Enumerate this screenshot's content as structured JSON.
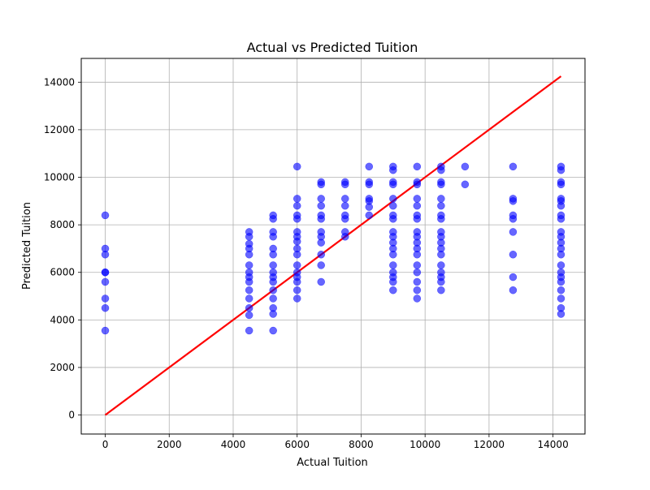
{
  "chart_data": {
    "type": "scatter",
    "title": "Actual vs Predicted Tuition",
    "xlabel": "Actual Tuition",
    "ylabel": "Predicted Tuition",
    "xlim": [
      -750,
      15000
    ],
    "ylim": [
      -800,
      15000
    ],
    "xticks": [
      0,
      2000,
      4000,
      6000,
      8000,
      10000,
      12000,
      14000
    ],
    "yticks": [
      0,
      2000,
      4000,
      6000,
      8000,
      10000,
      12000,
      14000
    ],
    "grid": true,
    "point_color": "#0000ff",
    "point_opacity": 0.6,
    "line_color": "#ff0000",
    "reference_line": {
      "x": [
        0,
        14250
      ],
      "y": [
        0,
        14250
      ]
    },
    "series": [
      {
        "points": [
          [
            0,
            8400
          ],
          [
            0,
            7000
          ],
          [
            0,
            6750
          ],
          [
            0,
            6000
          ],
          [
            0,
            6000
          ],
          [
            0,
            5600
          ],
          [
            0,
            4900
          ],
          [
            0,
            4500
          ],
          [
            0,
            3550
          ],
          [
            4500,
            7700
          ],
          [
            4500,
            7500
          ],
          [
            4500,
            7200
          ],
          [
            4500,
            7000
          ],
          [
            4500,
            6750
          ],
          [
            4500,
            6300
          ],
          [
            4500,
            6000
          ],
          [
            4500,
            5800
          ],
          [
            4500,
            5600
          ],
          [
            4500,
            5250
          ],
          [
            4500,
            4900
          ],
          [
            4500,
            4500
          ],
          [
            4500,
            4200
          ],
          [
            4500,
            3550
          ],
          [
            5250,
            8400
          ],
          [
            5250,
            8250
          ],
          [
            5250,
            7700
          ],
          [
            5250,
            7500
          ],
          [
            5250,
            7000
          ],
          [
            5250,
            6750
          ],
          [
            5250,
            6300
          ],
          [
            5250,
            6000
          ],
          [
            5250,
            5800
          ],
          [
            5250,
            5600
          ],
          [
            5250,
            5250
          ],
          [
            5250,
            4900
          ],
          [
            5250,
            4500
          ],
          [
            5250,
            4250
          ],
          [
            5250,
            3550
          ],
          [
            6000,
            10450
          ],
          [
            6000,
            9100
          ],
          [
            6000,
            8800
          ],
          [
            6000,
            8400
          ],
          [
            6000,
            8250
          ],
          [
            6000,
            7700
          ],
          [
            6000,
            7500
          ],
          [
            6000,
            7300
          ],
          [
            6000,
            7000
          ],
          [
            6000,
            6750
          ],
          [
            6000,
            6300
          ],
          [
            6000,
            6000
          ],
          [
            6000,
            5800
          ],
          [
            6000,
            5600
          ],
          [
            6000,
            5250
          ],
          [
            6000,
            4900
          ],
          [
            6750,
            9800
          ],
          [
            6750,
            9700
          ],
          [
            6750,
            9100
          ],
          [
            6750,
            8800
          ],
          [
            6750,
            8400
          ],
          [
            6750,
            8250
          ],
          [
            6750,
            7700
          ],
          [
            6750,
            7500
          ],
          [
            6750,
            7250
          ],
          [
            6750,
            6750
          ],
          [
            6750,
            6300
          ],
          [
            6750,
            5600
          ],
          [
            7500,
            9800
          ],
          [
            7500,
            9700
          ],
          [
            7500,
            9100
          ],
          [
            7500,
            8800
          ],
          [
            7500,
            8400
          ],
          [
            7500,
            8250
          ],
          [
            7500,
            7700
          ],
          [
            7500,
            7500
          ],
          [
            8250,
            10450
          ],
          [
            8250,
            9800
          ],
          [
            8250,
            9700
          ],
          [
            8250,
            9100
          ],
          [
            8250,
            9000
          ],
          [
            8250,
            8750
          ],
          [
            8250,
            8400
          ],
          [
            9000,
            10450
          ],
          [
            9000,
            10300
          ],
          [
            9000,
            9800
          ],
          [
            9000,
            9700
          ],
          [
            9000,
            9100
          ],
          [
            9000,
            8800
          ],
          [
            9000,
            8400
          ],
          [
            9000,
            8250
          ],
          [
            9000,
            7700
          ],
          [
            9000,
            7500
          ],
          [
            9000,
            7250
          ],
          [
            9000,
            7000
          ],
          [
            9000,
            6750
          ],
          [
            9000,
            6300
          ],
          [
            9000,
            6000
          ],
          [
            9000,
            5800
          ],
          [
            9000,
            5600
          ],
          [
            9000,
            5250
          ],
          [
            9750,
            10450
          ],
          [
            9750,
            9800
          ],
          [
            9750,
            9700
          ],
          [
            9750,
            9100
          ],
          [
            9750,
            8800
          ],
          [
            9750,
            8400
          ],
          [
            9750,
            8250
          ],
          [
            9750,
            7700
          ],
          [
            9750,
            7500
          ],
          [
            9750,
            7250
          ],
          [
            9750,
            7000
          ],
          [
            9750,
            6750
          ],
          [
            9750,
            6300
          ],
          [
            9750,
            6000
          ],
          [
            9750,
            5600
          ],
          [
            9750,
            5250
          ],
          [
            9750,
            4900
          ],
          [
            10500,
            10450
          ],
          [
            10500,
            10300
          ],
          [
            10500,
            9800
          ],
          [
            10500,
            9700
          ],
          [
            10500,
            9100
          ],
          [
            10500,
            8800
          ],
          [
            10500,
            8400
          ],
          [
            10500,
            8250
          ],
          [
            10500,
            7700
          ],
          [
            10500,
            7500
          ],
          [
            10500,
            7250
          ],
          [
            10500,
            7000
          ],
          [
            10500,
            6750
          ],
          [
            10500,
            6300
          ],
          [
            10500,
            6000
          ],
          [
            10500,
            5800
          ],
          [
            10500,
            5600
          ],
          [
            10500,
            5250
          ],
          [
            11250,
            10450
          ],
          [
            11250,
            9700
          ],
          [
            12750,
            10450
          ],
          [
            12750,
            9100
          ],
          [
            12750,
            9000
          ],
          [
            12750,
            8400
          ],
          [
            12750,
            8250
          ],
          [
            12750,
            7700
          ],
          [
            12750,
            6750
          ],
          [
            12750,
            5800
          ],
          [
            12750,
            5250
          ],
          [
            14250,
            10450
          ],
          [
            14250,
            10300
          ],
          [
            14250,
            9800
          ],
          [
            14250,
            9700
          ],
          [
            14250,
            9100
          ],
          [
            14250,
            9000
          ],
          [
            14250,
            8800
          ],
          [
            14250,
            8400
          ],
          [
            14250,
            8250
          ],
          [
            14250,
            7700
          ],
          [
            14250,
            7500
          ],
          [
            14250,
            7250
          ],
          [
            14250,
            7000
          ],
          [
            14250,
            6750
          ],
          [
            14250,
            6300
          ],
          [
            14250,
            6000
          ],
          [
            14250,
            5800
          ],
          [
            14250,
            5600
          ],
          [
            14250,
            5250
          ],
          [
            14250,
            4900
          ],
          [
            14250,
            4500
          ],
          [
            14250,
            4250
          ]
        ]
      }
    ]
  }
}
